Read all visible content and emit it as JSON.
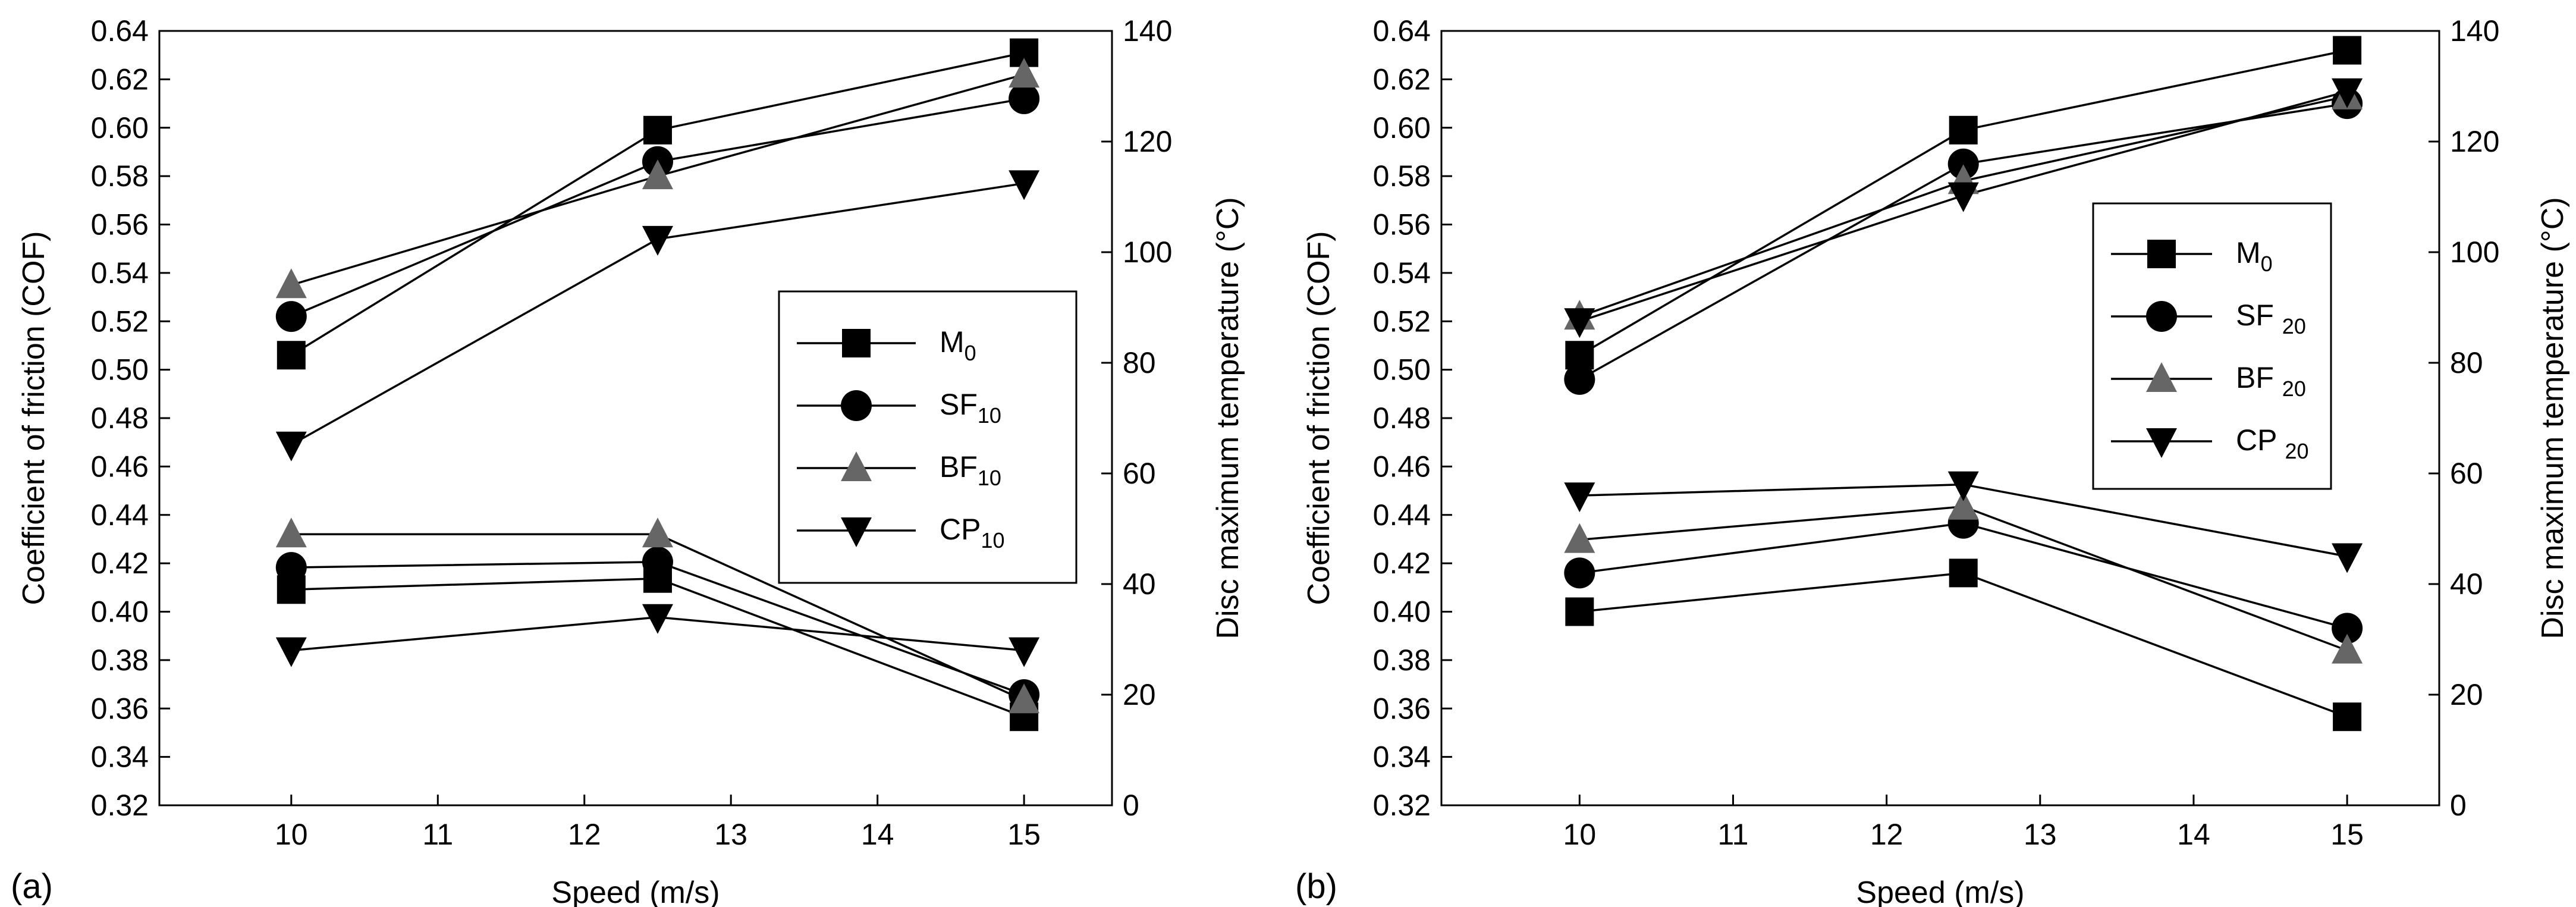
{
  "panels": [
    {
      "panel_label": "(a)",
      "legend": {
        "entries": [
          {
            "base": "M",
            "sub": "0"
          },
          {
            "base": "SF",
            "sub": "10"
          },
          {
            "base": "BF",
            "sub": "10"
          },
          {
            "base": "CP",
            "sub": "10"
          }
        ]
      }
    },
    {
      "panel_label": "(b)",
      "legend": {
        "entries": [
          {
            "base": "M",
            "sub": "0"
          },
          {
            "base": "SF ",
            "sub": "20"
          },
          {
            "base": "BF ",
            "sub": "20"
          },
          {
            "base": "CP ",
            "sub": "20"
          }
        ]
      }
    }
  ],
  "chart_data": [
    {
      "type": "line",
      "panel": "(a)",
      "xlabel": "Speed (m/s)",
      "ylabel": "Coefficient of friction (COF)",
      "ylabel_right": "Disc maximum temperature (°C)",
      "xlim": [
        9.1,
        15.6
      ],
      "ylim": [
        0.32,
        0.64
      ],
      "ylim_right": [
        0,
        140
      ],
      "x_ticks": [
        "10",
        "11",
        "12",
        "13",
        "14",
        "15"
      ],
      "y_ticks": [
        "0.32",
        "0.34",
        "0.36",
        "0.38",
        "0.40",
        "0.42",
        "0.44",
        "0.46",
        "0.48",
        "0.50",
        "0.52",
        "0.54",
        "0.56",
        "0.58",
        "0.60",
        "0.62",
        "0.64"
      ],
      "y_ticks_right": [
        "0",
        "20",
        "40",
        "60",
        "80",
        "100",
        "120",
        "140"
      ],
      "legend_position": "center-right",
      "x": [
        10,
        12.5,
        15
      ],
      "series": [
        {
          "name": "M0",
          "marker": "square",
          "color": "#000000",
          "cof": [
            0.506,
            0.599,
            0.631
          ],
          "temp": [
            39,
            41,
            16
          ]
        },
        {
          "name": "SF10",
          "marker": "circle",
          "color": "#000000",
          "cof": [
            0.522,
            0.586,
            0.612
          ],
          "temp": [
            43,
            44,
            20
          ]
        },
        {
          "name": "BF10",
          "marker": "triangle-up",
          "color": "#666666",
          "cof": [
            0.535,
            0.58,
            0.622
          ],
          "temp": [
            49,
            49,
            19
          ]
        },
        {
          "name": "CP10",
          "marker": "triangle-down",
          "color": "#000000",
          "cof": [
            0.469,
            0.554,
            0.577
          ],
          "temp": [
            28,
            34,
            28
          ]
        }
      ]
    },
    {
      "type": "line",
      "panel": "(b)",
      "xlabel": "Speed (m/s)",
      "ylabel": "Coefficient of friction (COF)",
      "ylabel_right": "Disc maximum temperature (°C)",
      "xlim": [
        9.1,
        15.6
      ],
      "ylim": [
        0.32,
        0.64
      ],
      "ylim_right": [
        0,
        140
      ],
      "x_ticks": [
        "10",
        "11",
        "12",
        "13",
        "14",
        "15"
      ],
      "y_ticks": [
        "0.32",
        "0.34",
        "0.36",
        "0.38",
        "0.40",
        "0.42",
        "0.44",
        "0.46",
        "0.48",
        "0.50",
        "0.52",
        "0.54",
        "0.56",
        "0.58",
        "0.60",
        "0.62",
        "0.64"
      ],
      "y_ticks_right": [
        "0",
        "20",
        "40",
        "60",
        "80",
        "100",
        "120",
        "140"
      ],
      "legend_position": "center-right",
      "x": [
        10,
        12.5,
        15
      ],
      "series": [
        {
          "name": "M0",
          "marker": "square",
          "color": "#000000",
          "cof": [
            0.506,
            0.599,
            0.632
          ],
          "temp": [
            35,
            42,
            16
          ]
        },
        {
          "name": "SF20",
          "marker": "circle",
          "color": "#000000",
          "cof": [
            0.496,
            0.585,
            0.61
          ],
          "temp": [
            42,
            51,
            32
          ]
        },
        {
          "name": "BF20",
          "marker": "triangle-up",
          "color": "#666666",
          "cof": [
            0.522,
            0.578,
            0.613
          ],
          "temp": [
            48,
            54,
            28
          ]
        },
        {
          "name": "CP20",
          "marker": "triangle-down",
          "color": "#000000",
          "cof": [
            0.52,
            0.572,
            0.615
          ],
          "temp": [
            56,
            58,
            45
          ]
        }
      ]
    }
  ]
}
